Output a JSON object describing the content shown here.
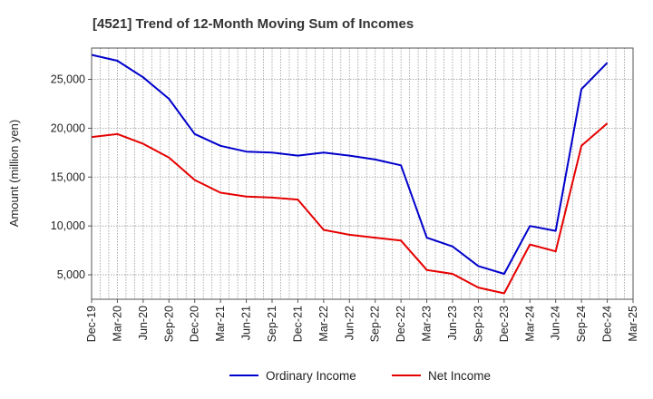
{
  "chart_data": {
    "type": "line",
    "title": "[4521]  Trend of 12-Month Moving Sum of Incomes",
    "ylabel": "Amount (million yen)",
    "xlabel": "",
    "x": [
      "Dec-19",
      "Mar-20",
      "Jun-20",
      "Sep-20",
      "Dec-20",
      "Mar-21",
      "Jun-21",
      "Sep-21",
      "Dec-21",
      "Mar-22",
      "Jun-22",
      "Sep-22",
      "Dec-22",
      "Mar-23",
      "Jun-23",
      "Sep-23",
      "Dec-23",
      "Mar-24",
      "Jun-24",
      "Sep-24",
      "Dec-24"
    ],
    "x_ticks": [
      "Dec-19",
      "Mar-20",
      "Jun-20",
      "Sep-20",
      "Dec-20",
      "Mar-21",
      "Jun-21",
      "Sep-21",
      "Dec-21",
      "Mar-22",
      "Jun-22",
      "Sep-22",
      "Dec-22",
      "Mar-23",
      "Jun-23",
      "Sep-23",
      "Dec-23",
      "Mar-24",
      "Jun-24",
      "Sep-24",
      "Dec-24",
      "Mar-25"
    ],
    "y_ticks": [
      "5,000",
      "10,000",
      "15,000",
      "20,000",
      "25,000"
    ],
    "y_tick_values": [
      5000,
      10000,
      15000,
      20000,
      25000
    ],
    "ylim": [
      2500,
      28200
    ],
    "grid": true,
    "legend_position": "bottom-center",
    "series": [
      {
        "name": "Ordinary Income",
        "color": "#0000cc",
        "values": [
          27500,
          26900,
          25200,
          23000,
          19400,
          18200,
          17600,
          17500,
          17200,
          17500,
          17200,
          16800,
          16200,
          8800,
          7900,
          5900,
          5100,
          10000,
          9500,
          24000,
          26700
        ]
      },
      {
        "name": "Net Income",
        "color": "#e60000",
        "values": [
          19100,
          19400,
          18400,
          17000,
          14700,
          13400,
          13000,
          12900,
          12700,
          9600,
          9100,
          8800,
          8500,
          5500,
          5100,
          3700,
          3100,
          8100,
          7400,
          18200,
          20500
        ]
      }
    ]
  }
}
